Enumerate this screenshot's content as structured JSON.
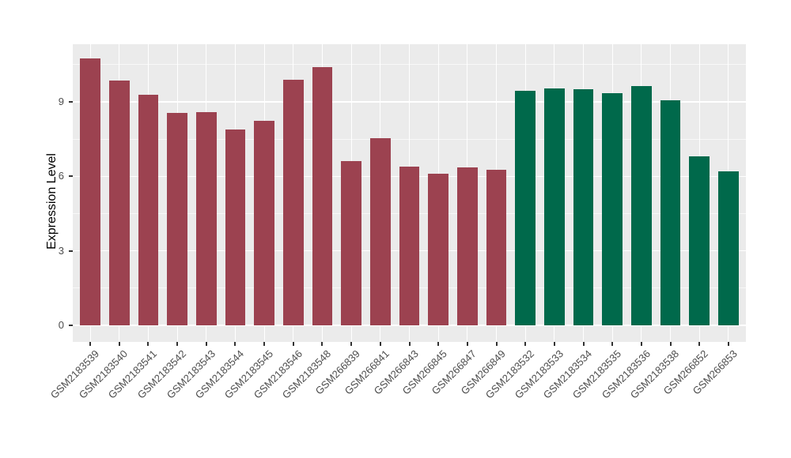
{
  "chart_data": {
    "type": "bar",
    "ylabel": "Expression Level",
    "categories": [
      "GSM2183539",
      "GSM2183540",
      "GSM2183541",
      "GSM2183542",
      "GSM2183543",
      "GSM2183544",
      "GSM2183545",
      "GSM2183546",
      "GSM2183548",
      "GSM266839",
      "GSM266841",
      "GSM266843",
      "GSM266845",
      "GSM266847",
      "GSM266849",
      "GSM2183532",
      "GSM2183533",
      "GSM2183534",
      "GSM2183535",
      "GSM2183536",
      "GSM2183538",
      "GSM266852",
      "GSM266853"
    ],
    "values": [
      10.75,
      9.85,
      9.3,
      8.55,
      8.6,
      7.9,
      8.25,
      9.9,
      10.4,
      6.6,
      7.55,
      6.4,
      6.1,
      6.35,
      6.25,
      9.45,
      9.55,
      9.5,
      9.35,
      9.65,
      9.05,
      6.8,
      6.2
    ],
    "groups": [
      "red",
      "red",
      "red",
      "red",
      "red",
      "red",
      "red",
      "red",
      "red",
      "red",
      "red",
      "red",
      "red",
      "red",
      "red",
      "green",
      "green",
      "green",
      "green",
      "green",
      "green",
      "green",
      "green"
    ],
    "group_colors": {
      "red": "#9C4250",
      "green": "#00694B"
    },
    "yticks": [
      0,
      3,
      6,
      9
    ],
    "yticks_minor": [
      1.5,
      4.5,
      7.5,
      10.5
    ],
    "ylim": [
      -0.67,
      11.32
    ],
    "grid": true,
    "legend_position": "none",
    "panel_bg": "#EBEBEB",
    "gridline_color": "#FFFFFF",
    "tick_color": "#333333",
    "tick_label_color": "#4D4D4D",
    "bar_width_ratio": 0.7
  }
}
